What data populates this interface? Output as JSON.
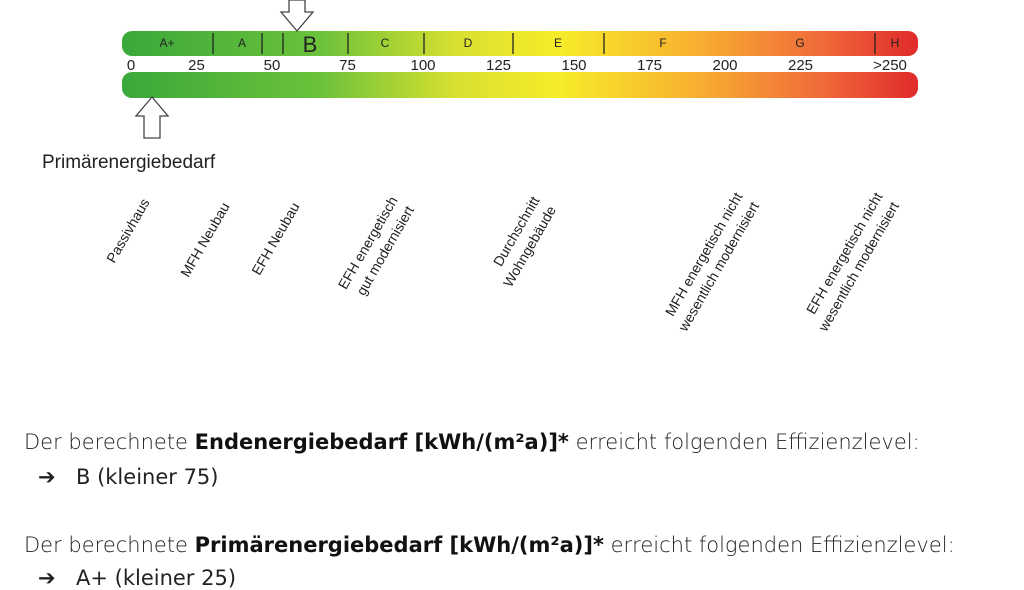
{
  "scale": {
    "classes": [
      "A+",
      "A",
      "B",
      "C",
      "D",
      "E",
      "F",
      "G",
      "H"
    ],
    "ticks": [
      "0",
      "25",
      "50",
      "75",
      "100",
      "125",
      "150",
      "175",
      "200",
      "225",
      ">250"
    ]
  },
  "label": "Primärenergiebedarf",
  "building_types": [
    [
      "Passivhaus"
    ],
    [
      "MFH Neubau"
    ],
    [
      "EFH Neubau"
    ],
    [
      "EFH energetisch",
      "gut modernisiert"
    ],
    [
      "Durchschnitt",
      "Wohngebäude"
    ],
    [
      "MFH energetisch nicht",
      "wesentlich modernisiert"
    ],
    [
      "EFH energetisch nicht",
      "wesentlich modernisiert"
    ]
  ],
  "text": [
    {
      "pre": "Der berechnete ",
      "bold": "Endenergiebedarf [kWh/(m²a)]*",
      "post": " erreicht folgenden Effizienzlevel:",
      "result": "B (kleiner 75)"
    },
    {
      "pre": "Der berechnete ",
      "bold": "Primärenergiebedarf [kWh/(m²a)]*",
      "post": " erreicht folgenden Effizienzlevel:",
      "result": "A+ (kleiner 25)"
    }
  ]
}
